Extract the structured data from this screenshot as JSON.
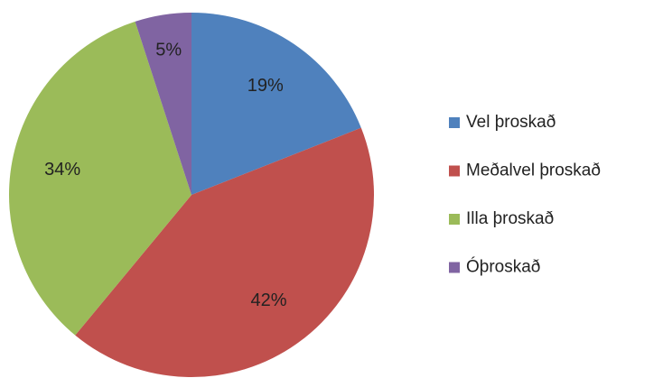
{
  "chart_data": {
    "type": "pie",
    "categories": [
      "Vel þroskað",
      "Meðalvel þroskað",
      "Illa þroskað",
      "Óþroskað"
    ],
    "values": [
      19,
      42,
      34,
      5
    ],
    "value_labels": [
      "19%",
      "42%",
      "34%",
      "5%"
    ],
    "colors": [
      "#4f81bd",
      "#c0504d",
      "#9bbb59",
      "#8064a2"
    ],
    "legend": "right"
  }
}
